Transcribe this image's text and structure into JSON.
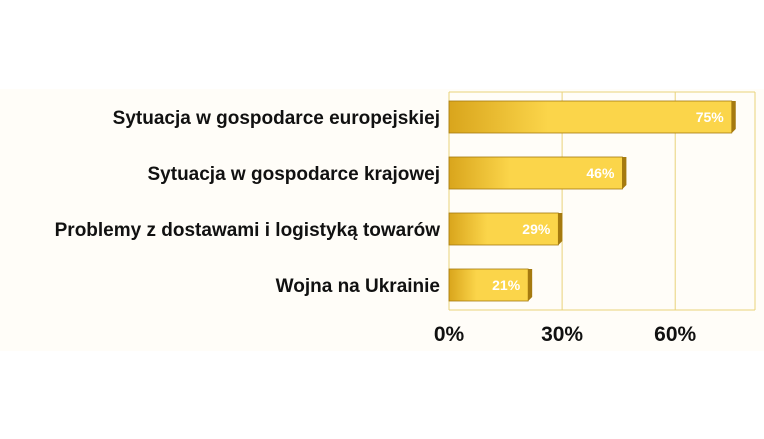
{
  "chart_data": {
    "type": "bar",
    "orientation": "horizontal",
    "categories": [
      "Sytuacja w gospodarce europejskiej",
      "Sytuacja w gospodarce krajowej",
      "Problemy z dostawami i logistyką towarów",
      "Wojna na Ukrainie"
    ],
    "values": [
      75,
      46,
      29,
      21
    ],
    "data_labels": [
      "75%",
      "46%",
      "29%",
      "21%"
    ],
    "x_ticks": [
      0,
      30,
      60
    ],
    "x_tick_labels": [
      "0%",
      "30%",
      "60%"
    ],
    "xlim": [
      0,
      80
    ],
    "grid": "vertical",
    "legend": "none",
    "title": "",
    "xlabel": "",
    "ylabel": "",
    "colors": {
      "bar_light": "#fbd54a",
      "bar_dark": "#d9a51c",
      "bar_edge": "#a57a10",
      "gridline": "#e8d27a",
      "panel_bg": "#fffdf8"
    }
  }
}
